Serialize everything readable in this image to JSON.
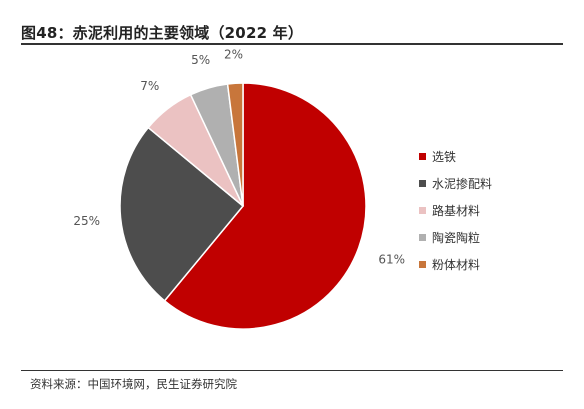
{
  "figure": {
    "title": "图48：赤泥利用的主要领域（2022 年）",
    "source": "资料来源：中国环境网，民生证券研究院"
  },
  "chart_data": {
    "type": "pie",
    "title": "",
    "categories": [
      "选铁",
      "水泥掺配料",
      "路基材料",
      "陶瓷陶粒",
      "粉体材料"
    ],
    "values": [
      61,
      25,
      7,
      5,
      2
    ],
    "value_labels": [
      "61%",
      "25%",
      "7%",
      "5%",
      "2%"
    ],
    "unit": "%",
    "colors": [
      "#C00000",
      "#4D4D4D",
      "#EBC2C2",
      "#B0B0B0",
      "#C8763B"
    ],
    "start": "12 o'clock",
    "direction": "clockwise",
    "legend_position": "right"
  }
}
